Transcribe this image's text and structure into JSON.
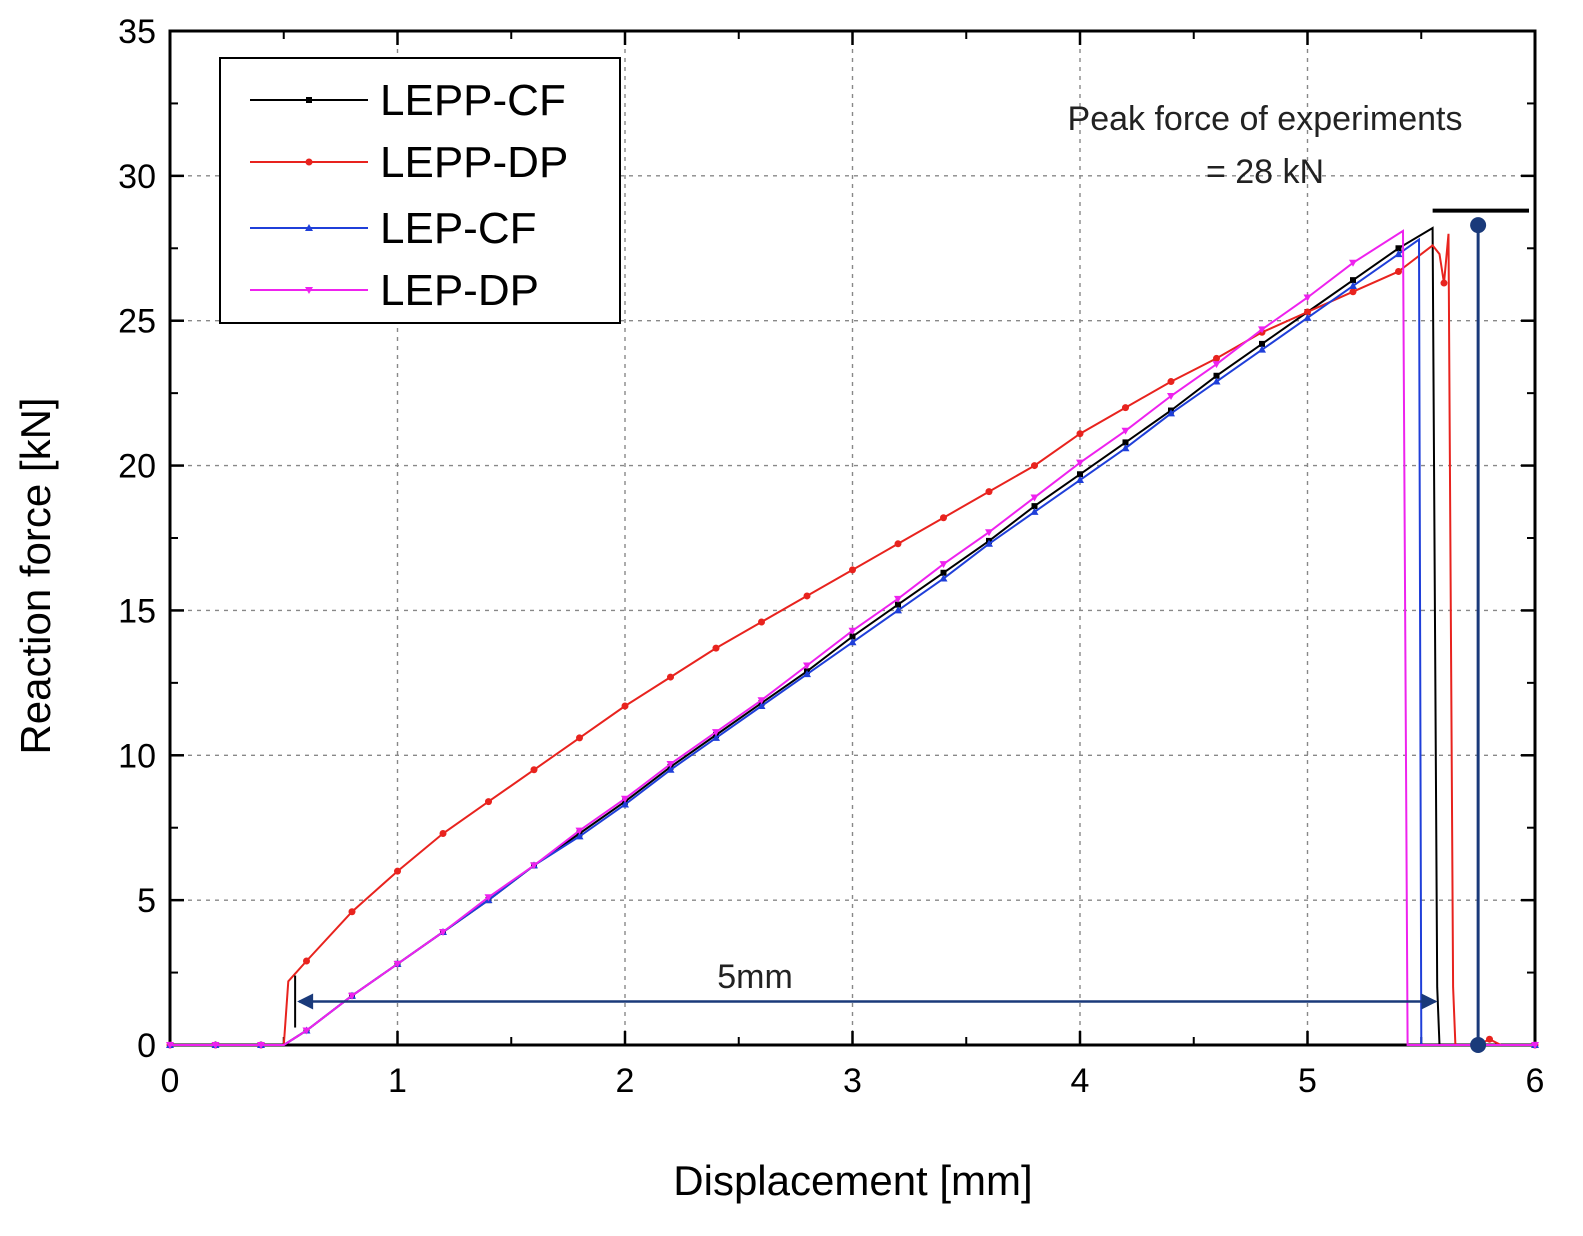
{
  "chart_data": {
    "type": "line",
    "title": "",
    "xlabel": "Displacement [mm]",
    "ylabel": "Reaction force [kN]",
    "xlim": [
      0,
      6
    ],
    "ylim": [
      0,
      35
    ],
    "xticks": [
      0,
      1,
      2,
      3,
      4,
      5,
      6
    ],
    "yticks": [
      0,
      5,
      10,
      15,
      20,
      25,
      30,
      35
    ],
    "grid": true,
    "legend_position": "top-left",
    "series": [
      {
        "name": "LEPP-CF",
        "color": "#000000",
        "marker": "square",
        "points": [
          [
            0,
            0
          ],
          [
            0.2,
            0
          ],
          [
            0.4,
            0
          ],
          [
            0.5,
            0
          ],
          [
            0.6,
            0.5
          ],
          [
            0.8,
            1.7
          ],
          [
            1.0,
            2.8
          ],
          [
            1.2,
            3.9
          ],
          [
            1.4,
            5.0
          ],
          [
            1.6,
            6.2
          ],
          [
            1.8,
            7.3
          ],
          [
            2.0,
            8.4
          ],
          [
            2.2,
            9.6
          ],
          [
            2.4,
            10.7
          ],
          [
            2.6,
            11.8
          ],
          [
            2.8,
            12.9
          ],
          [
            3.0,
            14.1
          ],
          [
            3.2,
            15.2
          ],
          [
            3.4,
            16.3
          ],
          [
            3.6,
            17.4
          ],
          [
            3.8,
            18.6
          ],
          [
            4.0,
            19.7
          ],
          [
            4.2,
            20.8
          ],
          [
            4.4,
            21.9
          ],
          [
            4.6,
            23.1
          ],
          [
            4.8,
            24.2
          ],
          [
            5.0,
            25.3
          ],
          [
            5.2,
            26.4
          ],
          [
            5.4,
            27.5
          ],
          [
            5.55,
            28.2
          ],
          [
            5.57,
            2.0
          ],
          [
            5.58,
            0
          ],
          [
            6.0,
            0
          ]
        ]
      },
      {
        "name": "LEPP-DP",
        "color": "#e8231e",
        "marker": "circle",
        "points": [
          [
            0,
            0
          ],
          [
            0.2,
            0
          ],
          [
            0.4,
            0
          ],
          [
            0.5,
            0
          ],
          [
            0.52,
            2.2
          ],
          [
            0.6,
            2.9
          ],
          [
            0.8,
            4.6
          ],
          [
            1.0,
            6.0
          ],
          [
            1.2,
            7.3
          ],
          [
            1.4,
            8.4
          ],
          [
            1.6,
            9.5
          ],
          [
            1.8,
            10.6
          ],
          [
            2.0,
            11.7
          ],
          [
            2.2,
            12.7
          ],
          [
            2.4,
            13.7
          ],
          [
            2.6,
            14.6
          ],
          [
            2.8,
            15.5
          ],
          [
            3.0,
            16.4
          ],
          [
            3.2,
            17.3
          ],
          [
            3.4,
            18.2
          ],
          [
            3.6,
            19.1
          ],
          [
            3.8,
            20.0
          ],
          [
            4.0,
            21.1
          ],
          [
            4.2,
            22.0
          ],
          [
            4.4,
            22.9
          ],
          [
            4.6,
            23.7
          ],
          [
            4.8,
            24.6
          ],
          [
            5.0,
            25.3
          ],
          [
            5.2,
            26.0
          ],
          [
            5.4,
            26.7
          ],
          [
            5.5,
            27.3
          ],
          [
            5.55,
            27.6
          ],
          [
            5.58,
            27.3
          ],
          [
            5.6,
            26.3
          ],
          [
            5.62,
            28.0
          ],
          [
            5.64,
            2.0
          ],
          [
            5.65,
            0
          ],
          [
            5.75,
            0
          ],
          [
            5.8,
            0.2
          ],
          [
            5.85,
            0
          ],
          [
            6.0,
            0
          ]
        ]
      },
      {
        "name": "LEP-CF",
        "color": "#1f3fd9",
        "marker": "triangle-up",
        "points": [
          [
            0,
            0
          ],
          [
            0.2,
            0
          ],
          [
            0.4,
            0
          ],
          [
            0.5,
            0
          ],
          [
            0.6,
            0.5
          ],
          [
            0.8,
            1.7
          ],
          [
            1.0,
            2.8
          ],
          [
            1.2,
            3.9
          ],
          [
            1.4,
            5.0
          ],
          [
            1.6,
            6.2
          ],
          [
            1.8,
            7.2
          ],
          [
            2.0,
            8.3
          ],
          [
            2.2,
            9.5
          ],
          [
            2.4,
            10.6
          ],
          [
            2.6,
            11.7
          ],
          [
            2.8,
            12.8
          ],
          [
            3.0,
            13.9
          ],
          [
            3.2,
            15.0
          ],
          [
            3.4,
            16.1
          ],
          [
            3.6,
            17.3
          ],
          [
            3.8,
            18.4
          ],
          [
            4.0,
            19.5
          ],
          [
            4.2,
            20.6
          ],
          [
            4.4,
            21.8
          ],
          [
            4.6,
            22.9
          ],
          [
            4.8,
            24.0
          ],
          [
            5.0,
            25.1
          ],
          [
            5.2,
            26.2
          ],
          [
            5.4,
            27.3
          ],
          [
            5.49,
            27.8
          ],
          [
            5.5,
            0
          ],
          [
            6.0,
            0
          ]
        ]
      },
      {
        "name": "LEP-DP",
        "color": "#ee22ee",
        "marker": "triangle-down",
        "points": [
          [
            0,
            0
          ],
          [
            0.2,
            0
          ],
          [
            0.4,
            0
          ],
          [
            0.5,
            0
          ],
          [
            0.6,
            0.5
          ],
          [
            0.8,
            1.7
          ],
          [
            1.0,
            2.8
          ],
          [
            1.2,
            3.9
          ],
          [
            1.4,
            5.1
          ],
          [
            1.6,
            6.2
          ],
          [
            1.8,
            7.4
          ],
          [
            2.0,
            8.5
          ],
          [
            2.2,
            9.7
          ],
          [
            2.4,
            10.8
          ],
          [
            2.6,
            11.9
          ],
          [
            2.8,
            13.1
          ],
          [
            3.0,
            14.3
          ],
          [
            3.2,
            15.4
          ],
          [
            3.4,
            16.6
          ],
          [
            3.6,
            17.7
          ],
          [
            3.8,
            18.9
          ],
          [
            4.0,
            20.1
          ],
          [
            4.2,
            21.2
          ],
          [
            4.4,
            22.4
          ],
          [
            4.6,
            23.5
          ],
          [
            4.8,
            24.7
          ],
          [
            5.0,
            25.8
          ],
          [
            5.2,
            27.0
          ],
          [
            5.42,
            28.1
          ],
          [
            5.44,
            0
          ],
          [
            6.0,
            0
          ]
        ]
      }
    ],
    "annotations": {
      "peak_text_line1": "Peak force of experiments",
      "peak_text_line2": "= 28 kN",
      "peak_marker": {
        "x": 5.75,
        "y_top": 28.3,
        "y_bottom": 0,
        "color": "#1a3a7a"
      },
      "peak_bar": {
        "x_start": 5.55,
        "x_end": 6.0,
        "y": 28.8
      },
      "dimension_label": "5mm",
      "dimension_from_x": 0.55,
      "dimension_to_x": 5.58,
      "dimension_y": 1.5
    }
  }
}
